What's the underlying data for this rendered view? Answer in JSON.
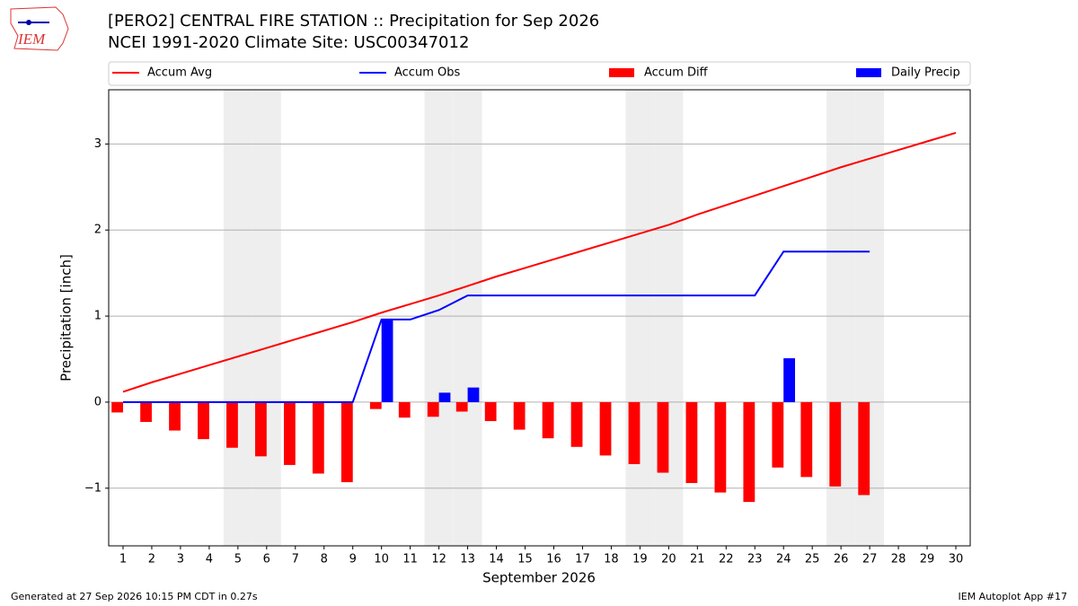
{
  "logo_text": "IEM",
  "chart_data": {
    "type": "combo",
    "title": "[PERO2] CENTRAL FIRE STATION :: Precipitation for Sep 2026",
    "subtitle": "NCEI 1991-2020 Climate Site: USC00347012",
    "xlabel": "September 2026",
    "ylabel": "Precipitation [inch]",
    "x": [
      1,
      2,
      3,
      4,
      5,
      6,
      7,
      8,
      9,
      10,
      11,
      12,
      13,
      14,
      15,
      16,
      17,
      18,
      19,
      20,
      21,
      22,
      23,
      24,
      25,
      26,
      27,
      28,
      29,
      30
    ],
    "xlim": [
      0.5,
      30.5
    ],
    "xticks": [
      1,
      2,
      3,
      4,
      5,
      6,
      7,
      8,
      9,
      10,
      11,
      12,
      13,
      14,
      15,
      16,
      17,
      18,
      19,
      20,
      21,
      22,
      23,
      24,
      25,
      26,
      27,
      28,
      29,
      30
    ],
    "ylim": [
      -1.67,
      3.63
    ],
    "yticks": [
      {
        "value": -1,
        "label": "−1"
      },
      0,
      1,
      2,
      3
    ],
    "grid": true,
    "shaded_days": [
      5,
      6,
      12,
      13,
      19,
      20,
      26,
      27
    ],
    "series": [
      {
        "name": "Accum Avg",
        "type": "line",
        "color": "#ff0000",
        "values": [
          0.12,
          0.23,
          0.33,
          0.43,
          0.53,
          0.63,
          0.73,
          0.83,
          0.93,
          1.04,
          1.14,
          1.24,
          1.35,
          1.46,
          1.56,
          1.66,
          1.76,
          1.86,
          1.96,
          2.06,
          2.18,
          2.29,
          2.4,
          2.51,
          2.62,
          2.73,
          2.83,
          2.93,
          3.03,
          3.13
        ]
      },
      {
        "name": "Accum Obs",
        "type": "line",
        "color": "#0000ff",
        "values": [
          0,
          0,
          0,
          0,
          0,
          0,
          0,
          0,
          0,
          0.96,
          0.96,
          1.07,
          1.24,
          1.24,
          1.24,
          1.24,
          1.24,
          1.24,
          1.24,
          1.24,
          1.24,
          1.24,
          1.24,
          1.75,
          1.75,
          1.75,
          1.75,
          null,
          null,
          null
        ]
      },
      {
        "name": "Accum Diff",
        "type": "bar",
        "offset": "left",
        "color": "#ff0000",
        "values": [
          -0.12,
          -0.23,
          -0.33,
          -0.43,
          -0.53,
          -0.63,
          -0.73,
          -0.83,
          -0.93,
          -0.08,
          -0.18,
          -0.17,
          -0.11,
          -0.22,
          -0.32,
          -0.42,
          -0.52,
          -0.62,
          -0.72,
          -0.82,
          -0.94,
          -1.05,
          -1.16,
          -0.76,
          -0.87,
          -0.98,
          -1.08,
          null,
          null,
          null
        ]
      },
      {
        "name": "Daily Precip",
        "type": "bar",
        "offset": "right",
        "color": "#0000ff",
        "values": [
          0,
          0,
          0,
          0,
          0,
          0,
          0,
          0,
          0,
          0.96,
          0,
          0.11,
          0.17,
          0,
          0,
          0,
          0,
          0,
          0,
          0,
          0,
          0,
          0,
          0.51,
          0,
          0,
          0,
          null,
          null,
          null
        ]
      }
    ]
  },
  "footer_left": "Generated at 27 Sep 2026 10:15 PM CDT in 0.27s",
  "footer_right": "IEM Autoplot App #17"
}
